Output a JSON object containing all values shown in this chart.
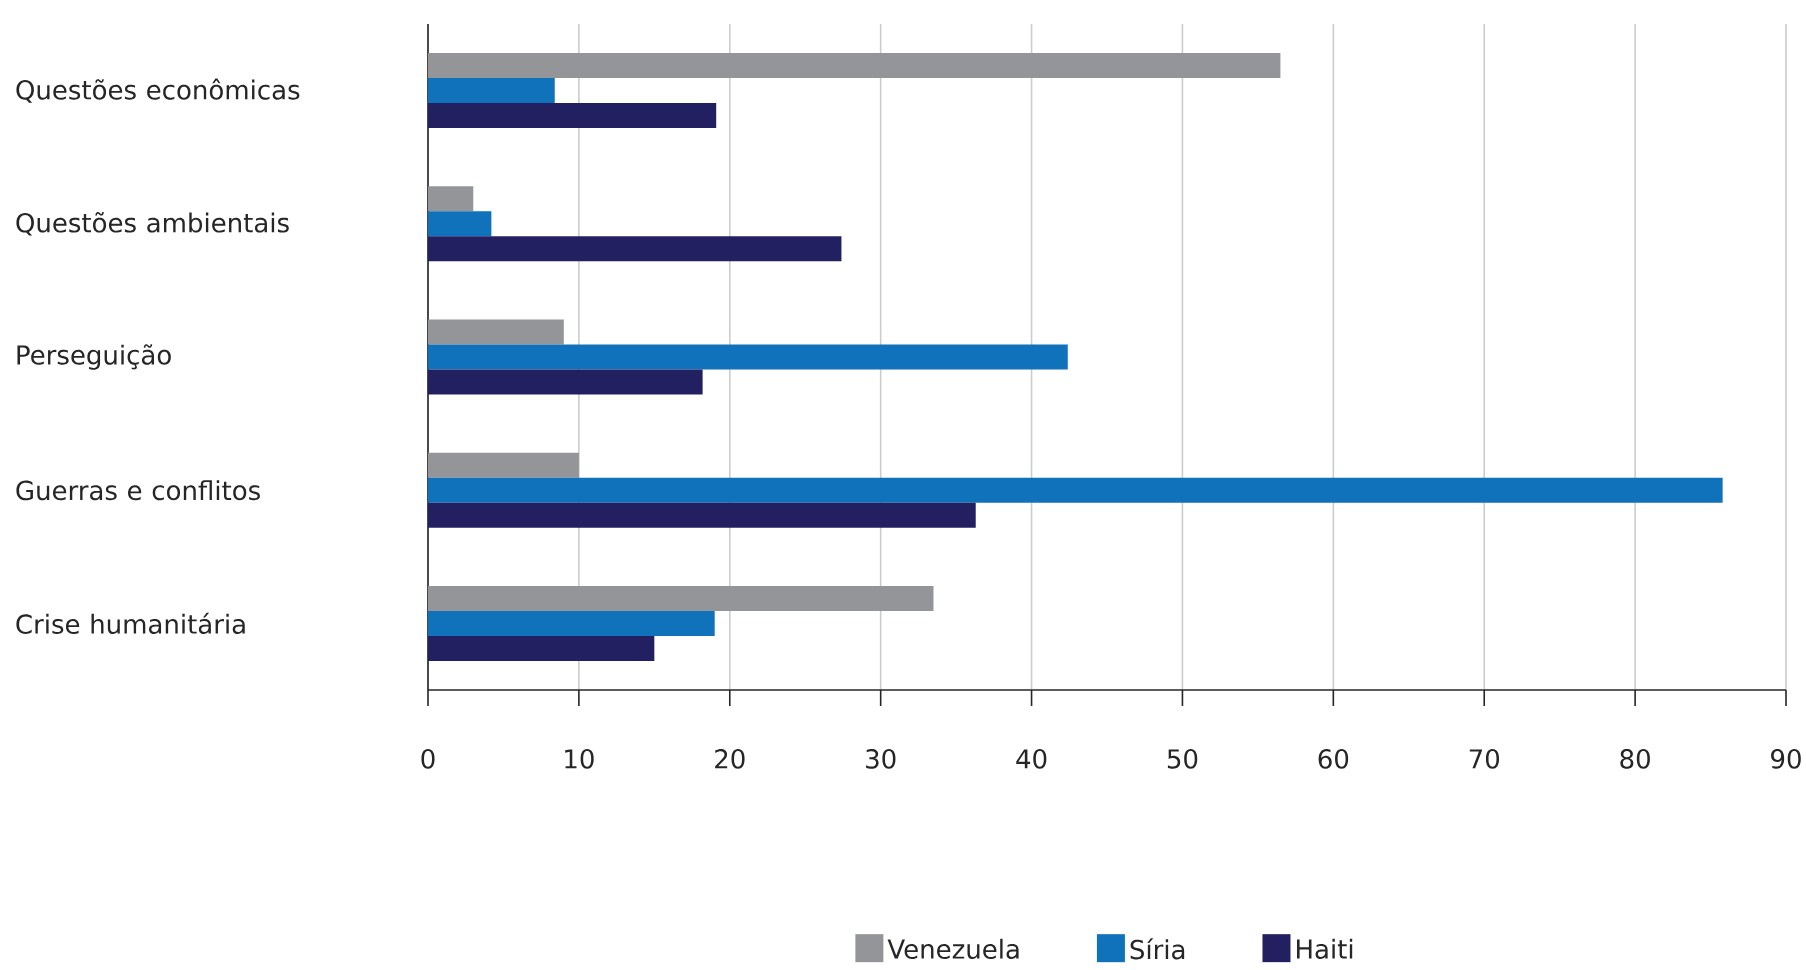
{
  "chart_data": {
    "type": "bar",
    "orientation": "horizontal",
    "categories": [
      "Questões econômicas",
      "Questões ambientais",
      "Perseguição",
      "Guerras e conflitos",
      "Crise humanitária"
    ],
    "series": [
      {
        "name": "Venezuela",
        "color": "#939598",
        "values": [
          56.5,
          3,
          9,
          10,
          33.5
        ]
      },
      {
        "name": "Síria",
        "color": "#1072ba",
        "values": [
          8.4,
          4.2,
          42.4,
          85.8,
          19
        ]
      },
      {
        "name": "Haiti",
        "color": "#232062",
        "values": [
          19.1,
          27.4,
          18.2,
          36.3,
          15
        ]
      }
    ],
    "xlim": [
      0,
      90
    ],
    "xticks": [
      0,
      10,
      20,
      30,
      40,
      50,
      60,
      70,
      80,
      90
    ],
    "grid": "x",
    "legend": "bottom"
  }
}
